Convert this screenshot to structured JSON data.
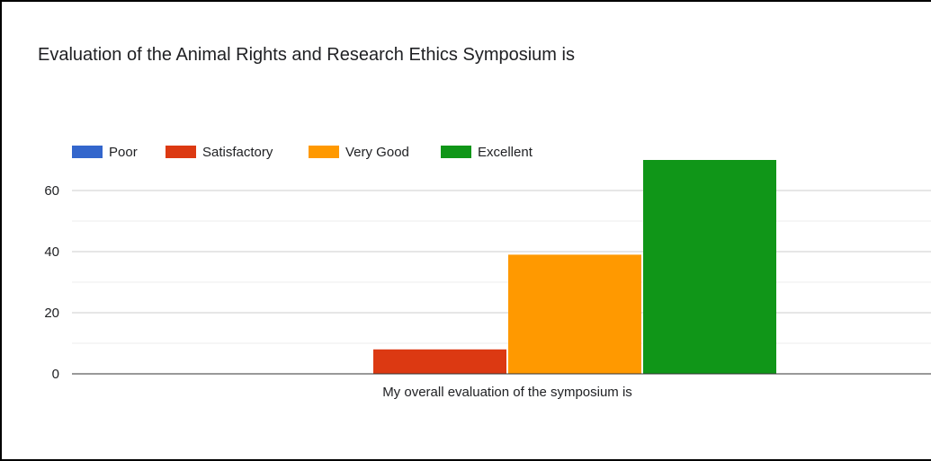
{
  "chart_data": {
    "type": "bar",
    "title": "Evaluation of the Animal Rights and Research Ethics Symposium is",
    "categories": [
      "My overall evaluation of the symposium is"
    ],
    "series": [
      {
        "name": "Poor",
        "values": [
          0
        ],
        "color": "#3366cc"
      },
      {
        "name": "Satisfactory",
        "values": [
          8
        ],
        "color": "#dc3912"
      },
      {
        "name": "Very Good",
        "values": [
          39
        ],
        "color": "#ff9900"
      },
      {
        "name": "Excellent",
        "values": [
          70
        ],
        "color": "#109618"
      }
    ],
    "ylim": [
      0,
      70
    ],
    "yticks": [
      0,
      20,
      40,
      60
    ],
    "grid": true,
    "legend_position": "top-left"
  }
}
